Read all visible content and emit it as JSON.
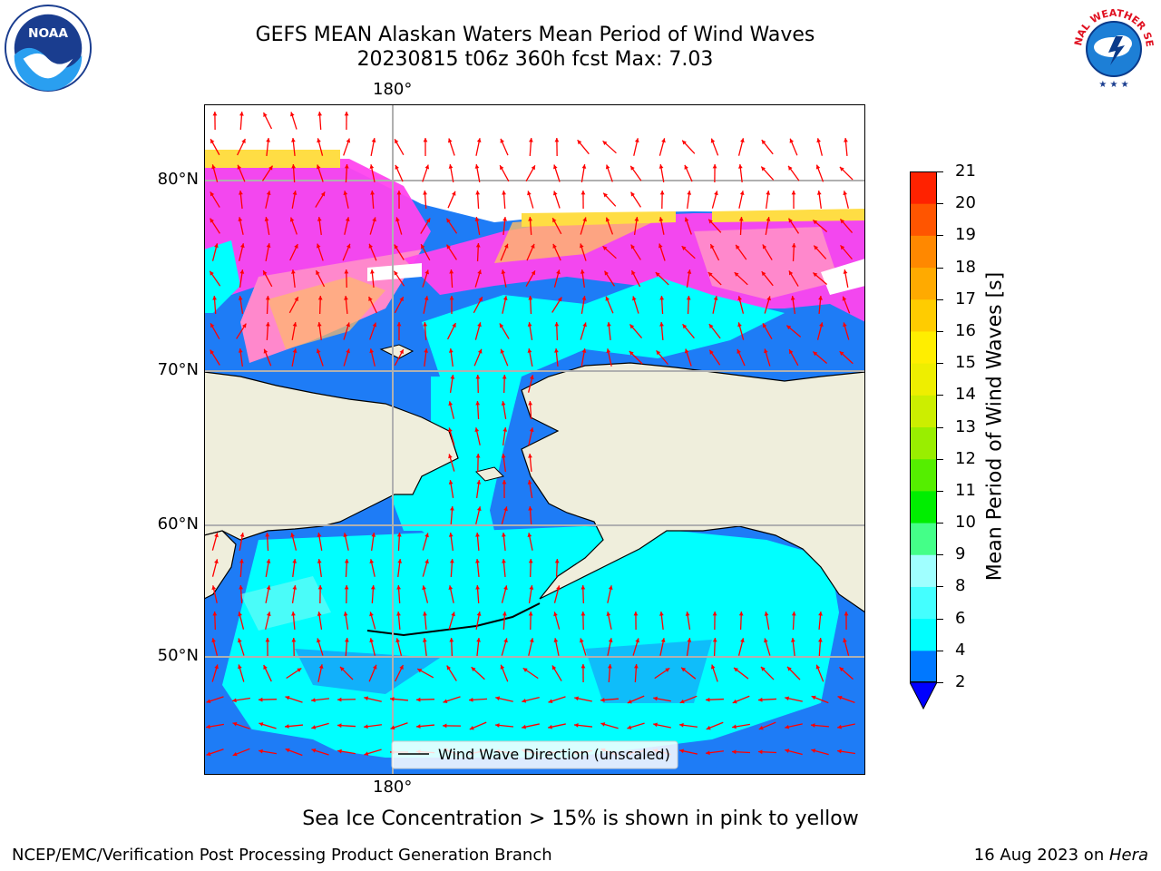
{
  "title": {
    "line1": "GEFS MEAN Alaskan Waters Mean Period of Wind Waves",
    "line2": "20230815 t06z 360h fcst   Max: 7.03"
  },
  "logos": {
    "noaa_text": "NOAA",
    "nws_text": "NATIONAL WEATHER SERVICE"
  },
  "map": {
    "lon_label_top": "180°",
    "lon_label_bottom": "180°",
    "lat_labels": [
      "80°N",
      "70°N",
      "60°N",
      "50°N"
    ],
    "legend_label": "Wind Wave Direction (unscaled)",
    "colors": {
      "land": "#efeedc",
      "deep_blue": "#1e7cf6",
      "cyan": "#00ffff",
      "light_cyan": "#5cfbf8",
      "ice_magenta": "#ff44ee",
      "ice_pink": "#ff88cc",
      "ice_orange": "#ffbb66",
      "ice_yellow": "#ffdd44",
      "arrow": "#ff0000",
      "grid": "#b0b0b0"
    }
  },
  "colorbar": {
    "label": "Mean Period of Wind Waves [s]",
    "ticks": [
      "2",
      "4",
      "6",
      "8",
      "9",
      "10",
      "11",
      "12",
      "13",
      "14",
      "15",
      "16",
      "17",
      "18",
      "19",
      "20",
      "21"
    ],
    "colors": [
      "#0078ff",
      "#00ffff",
      "#44ffff",
      "#a0ffff",
      "#44ff88",
      "#00ee00",
      "#55ee00",
      "#99ee00",
      "#ccee00",
      "#eeee00",
      "#ffee00",
      "#ffcc00",
      "#ffaa00",
      "#ff8800",
      "#ff5500",
      "#ff2200",
      "#ff0000"
    ],
    "extend_color": "#0000ff"
  },
  "note": "Sea Ice Concentration > 15% is shown in pink to yellow",
  "footer": {
    "left": "NCEP/EMC/Verification Post Processing Product Generation Branch",
    "right_date": "16 Aug 2023 on ",
    "right_machine": "Hera"
  }
}
